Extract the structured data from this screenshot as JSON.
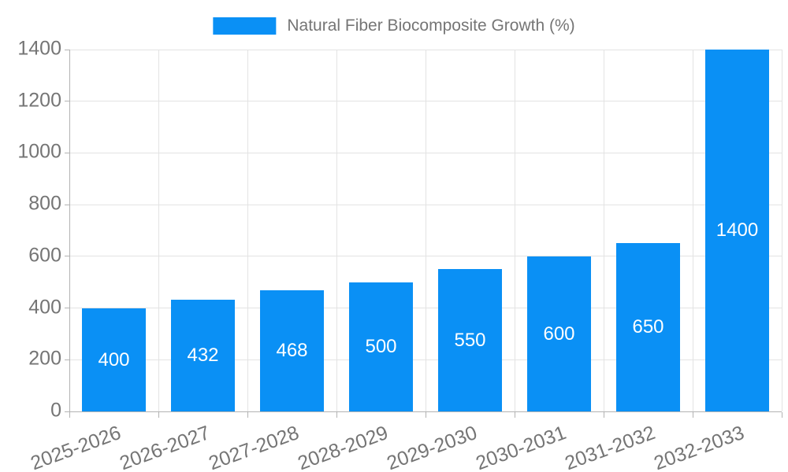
{
  "legend": {
    "label": "Natural Fiber Biocomposite Growth (%)"
  },
  "chart_data": {
    "type": "bar",
    "title": "Natural Fiber Biocomposite Growth (%)",
    "categories": [
      "2025-2026",
      "2026-2027",
      "2027-2028",
      "2028-2029",
      "2029-2030",
      "2030-2031",
      "2031-2032",
      "2032-2033"
    ],
    "values": [
      400,
      432,
      468,
      500,
      550,
      600,
      650,
      1400
    ],
    "value_labels": [
      "400",
      "432",
      "468",
      "500",
      "550",
      "600",
      "650",
      "1400"
    ],
    "xlabel": "",
    "ylabel": "",
    "ylim": [
      0,
      1400
    ],
    "yticks": [
      0,
      200,
      400,
      600,
      800,
      1000,
      1200,
      1400
    ],
    "ytick_labels": [
      "0",
      "200",
      "400",
      "600",
      "800",
      "1000",
      "1200",
      "1400"
    ],
    "x_label_rotation_deg": -20,
    "grid": true,
    "legend_position": "top-center",
    "colors": {
      "bar": "#0a90f5",
      "value_label": "#ffffff",
      "axis_text": "#757575",
      "gridline": "#e3e3e3",
      "axis_line": "#b3b3b3"
    }
  }
}
